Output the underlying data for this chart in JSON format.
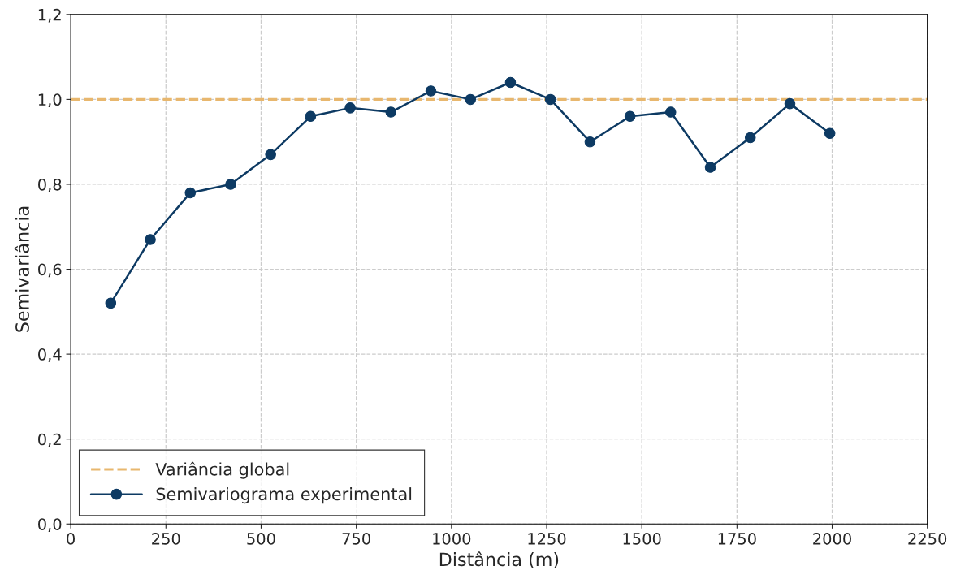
{
  "chart_data": {
    "type": "line",
    "xlabel": "Distância (m)",
    "ylabel": "Semivariância",
    "x": [
      105,
      209,
      314,
      420,
      525,
      630,
      734,
      841,
      946,
      1050,
      1155,
      1260,
      1364,
      1469,
      1576,
      1680,
      1785,
      1889,
      1994
    ],
    "series": [
      {
        "name": "Semivariograma experimental",
        "color": "#0d3a63",
        "values": [
          0.52,
          0.67,
          0.78,
          0.8,
          0.87,
          0.96,
          0.98,
          0.97,
          1.02,
          1.0,
          1.04,
          1.0,
          0.9,
          0.96,
          0.97,
          0.84,
          0.91,
          0.99,
          0.92
        ]
      }
    ],
    "ref_lines": [
      {
        "axis": "y",
        "value": 1.0,
        "label": "Variância global",
        "color": "#e8b76e",
        "line_style": "dashed"
      }
    ],
    "xlim": [
      0,
      2250
    ],
    "xticks": [
      0,
      250,
      500,
      750,
      1000,
      1250,
      1500,
      1750,
      2000,
      2250
    ],
    "ylim": [
      0,
      1.2
    ],
    "yticks": [
      {
        "value": 0,
        "label": "0,0"
      },
      {
        "value": 0.2,
        "label": "0,2"
      },
      {
        "value": 0.4,
        "label": "0,4"
      },
      {
        "value": 0.6,
        "label": "0,6"
      },
      {
        "value": 0.8,
        "label": "0,8"
      },
      {
        "value": 1.0,
        "label": "1,0"
      },
      {
        "value": 1.2,
        "label": "1,2"
      }
    ],
    "grid": true,
    "legend": "bottom left",
    "marker": "circle",
    "line_style": "solid"
  }
}
